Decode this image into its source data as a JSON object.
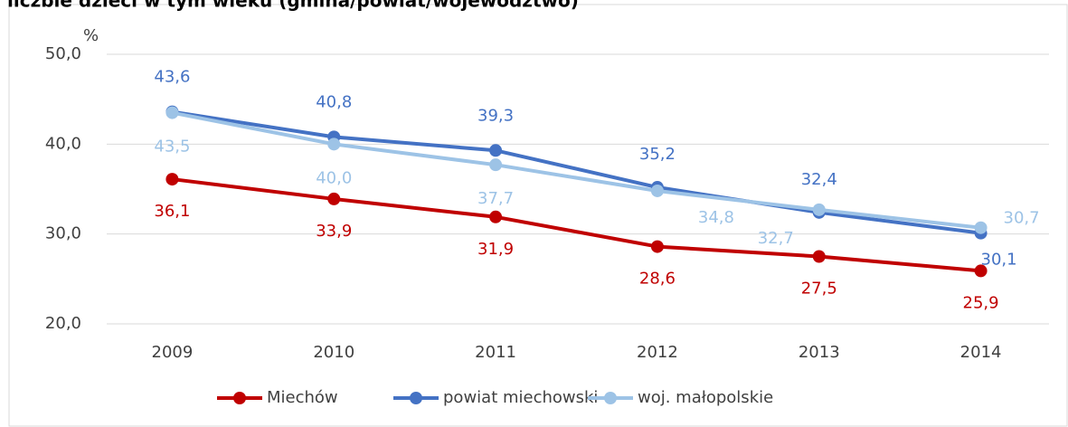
{
  "chart_data": {
    "type": "line",
    "title": "liczbie dzieci w tym wieku (gmina/powiat/województwo)",
    "y_unit": "%",
    "categories": [
      "2009",
      "2010",
      "2011",
      "2012",
      "2013",
      "2014"
    ],
    "series": [
      {
        "name": "Miechów",
        "color": "#c00000",
        "values": [
          36.1,
          33.9,
          31.9,
          28.6,
          27.5,
          25.9
        ],
        "value_labels": [
          "36,1",
          "33,9",
          "31,9",
          "28,6",
          "27,5",
          "25,9"
        ]
      },
      {
        "name": "powiat miechowski",
        "color": "#4472c4",
        "values": [
          43.6,
          40.8,
          39.3,
          35.2,
          32.4,
          30.1
        ],
        "value_labels": [
          "43,6",
          "40,8",
          "39,3",
          "35,2",
          "32,4",
          "30,1"
        ]
      },
      {
        "name": "woj. małopolskie",
        "color": "#9dc3e6",
        "values": [
          43.5,
          40.0,
          37.7,
          34.8,
          32.7,
          30.7
        ],
        "value_labels": [
          "43,5",
          "40,0",
          "37,7",
          "34,8",
          "32,7",
          "30,7"
        ]
      }
    ],
    "ylim": [
      20,
      50
    ],
    "yticks": [
      {
        "value": 20,
        "label": "20,0"
      },
      {
        "value": 30,
        "label": "30,0"
      },
      {
        "value": 40,
        "label": "40,0"
      },
      {
        "value": 50,
        "label": "50,0"
      }
    ],
    "grid": true,
    "legend": "bottom"
  }
}
